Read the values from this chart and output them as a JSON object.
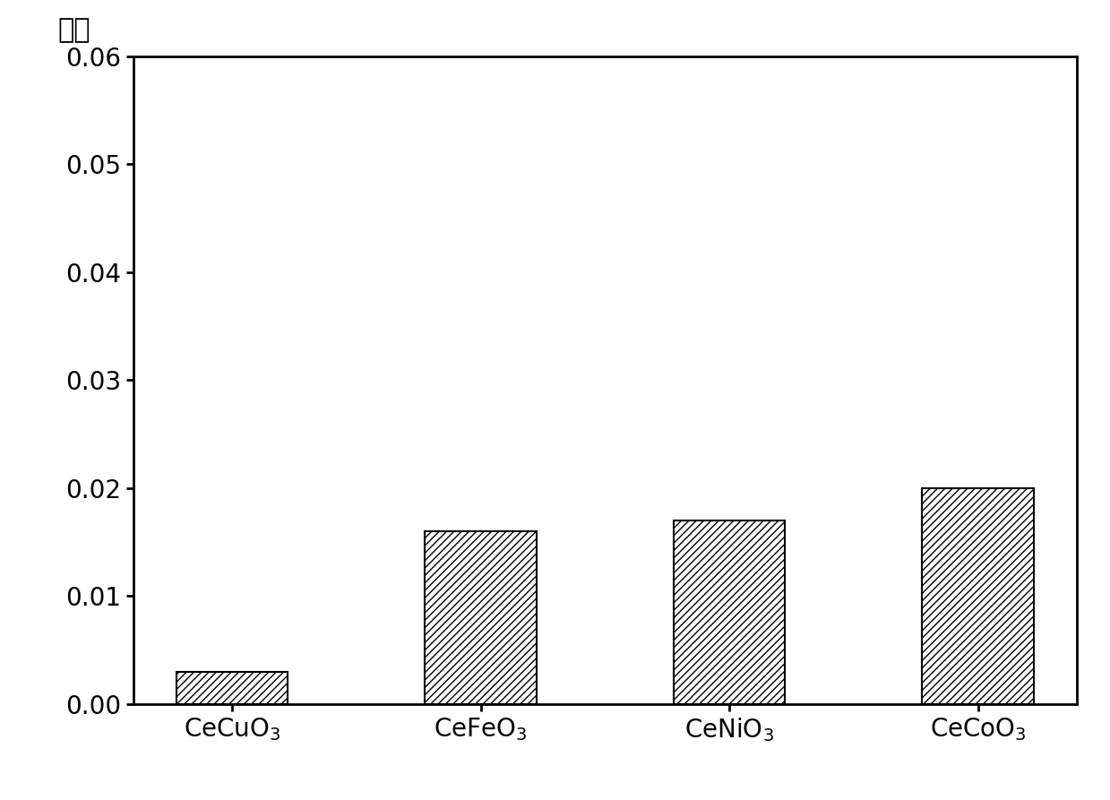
{
  "categories": [
    "CeCuO$_3$",
    "CeFeO$_3$",
    "CeNiO$_3$",
    "CeCoO$_3$"
  ],
  "values": [
    0.003,
    0.016,
    0.017,
    0.02
  ],
  "ylabel": "产率",
  "ylim": [
    0.0,
    0.06
  ],
  "yticks": [
    0.0,
    0.01,
    0.02,
    0.03,
    0.04,
    0.05,
    0.06
  ],
  "bar_color": "white",
  "bar_edgecolor": "black",
  "hatch": "////",
  "bar_width": 0.45,
  "figsize": [
    12.39,
    8.93
  ],
  "dpi": 100,
  "spine_linewidth": 2.0,
  "tick_fontsize": 20,
  "label_fontsize": 22
}
